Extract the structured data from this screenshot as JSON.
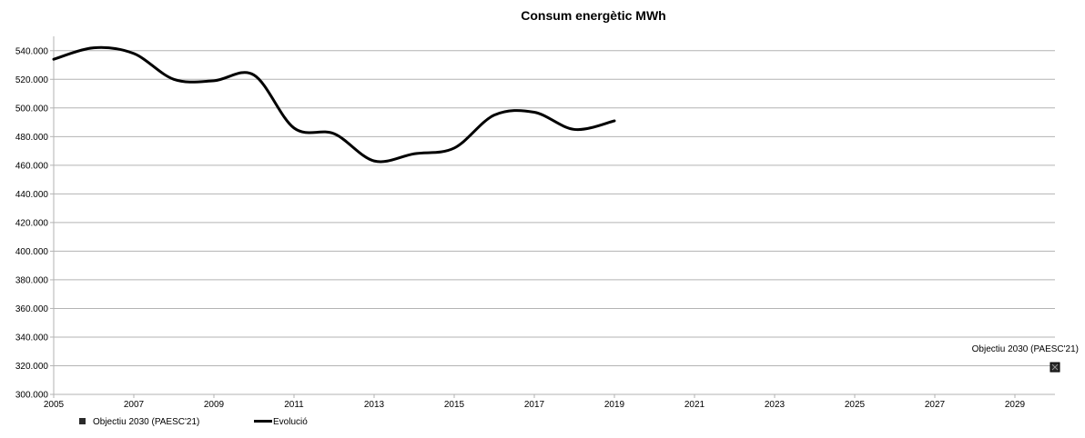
{
  "chart_data": {
    "type": "line",
    "title": "Consum energètic MWh",
    "xlabel": "",
    "ylabel": "",
    "xlim": [
      2005,
      2030
    ],
    "ylim": [
      300000,
      550000
    ],
    "x_ticks": [
      "2005",
      "2007",
      "2009",
      "2011",
      "2013",
      "2015",
      "2017",
      "2019",
      "2021",
      "2023",
      "2025",
      "2027",
      "2029"
    ],
    "x_tick_values": [
      2005,
      2007,
      2009,
      2011,
      2013,
      2015,
      2017,
      2019,
      2021,
      2023,
      2025,
      2027,
      2029
    ],
    "y_ticks": [
      "300.000",
      "320.000",
      "340.000",
      "360.000",
      "380.000",
      "400.000",
      "420.000",
      "440.000",
      "460.000",
      "480.000",
      "500.000",
      "520.000",
      "540.000"
    ],
    "y_tick_values": [
      300000,
      320000,
      340000,
      360000,
      380000,
      400000,
      420000,
      440000,
      460000,
      480000,
      500000,
      520000,
      540000
    ],
    "grid": "horizontal",
    "legend_position": "bottom-left",
    "series": [
      {
        "name": "Evolució",
        "style": "smooth-line",
        "color": "#000000",
        "x": [
          2005,
          2006,
          2007,
          2008,
          2009,
          2010,
          2011,
          2012,
          2013,
          2014,
          2015,
          2016,
          2017,
          2018,
          2019
        ],
        "y": [
          534000,
          542000,
          538000,
          520000,
          519000,
          523000,
          486000,
          482000,
          463000,
          468000,
          472000,
          495000,
          497000,
          485000,
          491000
        ]
      },
      {
        "name": "Objectiu 2030 (PAESC'21)",
        "style": "marker",
        "color": "#000000",
        "x": [
          2030
        ],
        "y": [
          319000
        ]
      }
    ],
    "annotations": [
      {
        "text": "Objectiu 2030 (PAESC'21)",
        "x": 2030,
        "y": 319000
      }
    ]
  }
}
